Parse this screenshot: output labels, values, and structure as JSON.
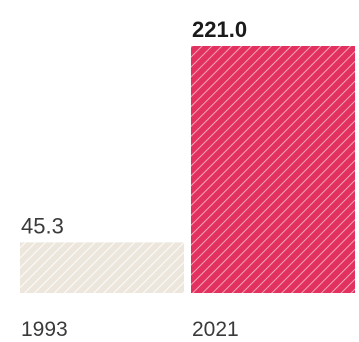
{
  "chart_data": {
    "type": "bar",
    "categories": [
      "1993",
      "2021"
    ],
    "values": [
      45.3,
      221.0
    ],
    "value_labels": [
      "45.3",
      "221.0"
    ],
    "emphasized": [
      false,
      true
    ],
    "colors": [
      "#ece6dc",
      "#e3315f"
    ],
    "pattern": "diagonal-hatch",
    "title": "",
    "xlabel": "",
    "ylabel": "",
    "ylim": [
      0,
      221.0
    ],
    "grid": false,
    "legend": "none"
  }
}
